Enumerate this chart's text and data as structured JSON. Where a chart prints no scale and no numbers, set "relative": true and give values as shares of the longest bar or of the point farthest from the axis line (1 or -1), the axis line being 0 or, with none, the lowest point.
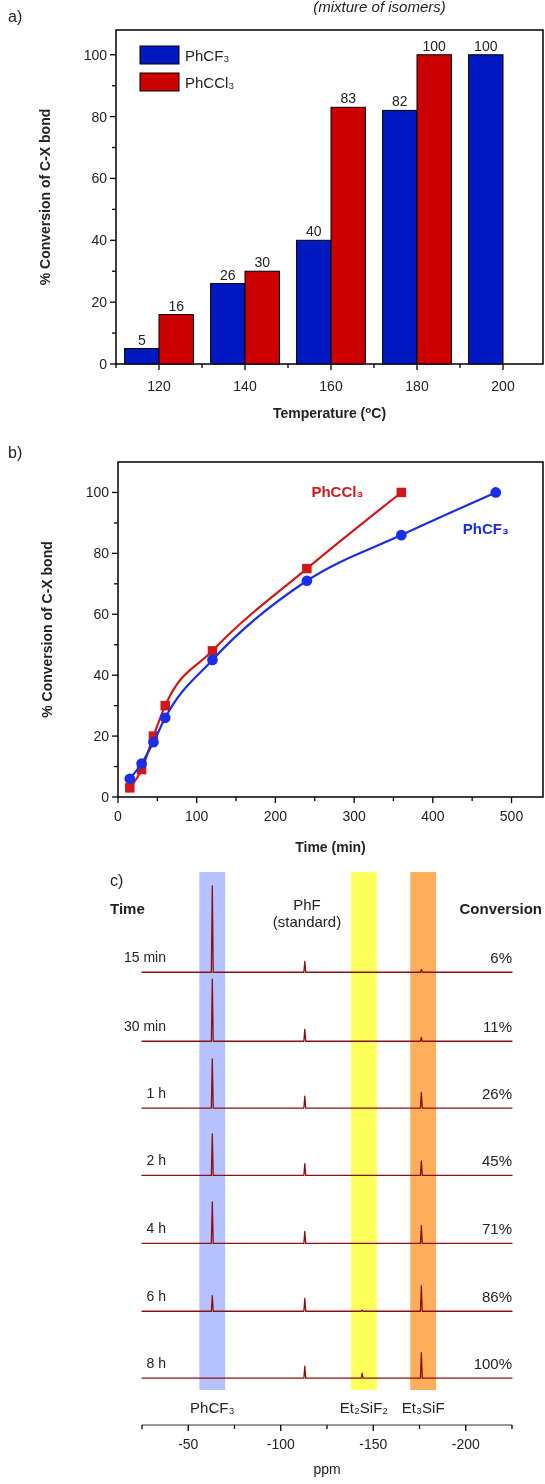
{
  "chart_data": [
    {
      "type": "bar",
      "title": "a)",
      "annotations": [
        "(mixture of isomers)"
      ],
      "xlabel": "Temperature ($^{o}$C)",
      "ylabel": "% Conversion of C-X bond",
      "categories": [
        "120",
        "140",
        "160",
        "180",
        "200"
      ],
      "series": [
        {
          "name": "PhCF₃",
          "color": "#0019c2",
          "values": [
            5,
            26,
            40,
            82,
            100
          ]
        },
        {
          "name": "PhCCl₃",
          "color": "#cc0000",
          "values": [
            16,
            30,
            83,
            100,
            null
          ]
        }
      ],
      "ylim": [
        0,
        108
      ],
      "yticks": [
        0,
        {
          "value": 10,
          "label": null
        },
        20,
        {
          "value": 30,
          "label": null
        },
        40,
        {
          "value": 50,
          "label": null
        },
        60,
        {
          "value": 70,
          "label": null
        },
        80,
        {
          "value": 90,
          "label": null
        },
        100
      ],
      "data_labels": true,
      "legend": "top left"
    },
    {
      "type": "line",
      "title": "b)",
      "xlabel": "Time (min)",
      "ylabel": "% Conversion of C-X bond",
      "series": [
        {
          "name": "PhCCl₃",
          "color": "#d01818",
          "marker": "square",
          "x": [
            15,
            30,
            45,
            60,
            120,
            240,
            360
          ],
          "values": [
            3,
            9,
            20,
            30,
            48,
            75,
            100
          ]
        },
        {
          "name": "PhCF₃",
          "color": "#1a2ee6",
          "marker": "circle",
          "x": [
            15,
            30,
            45,
            60,
            120,
            240,
            360,
            480
          ],
          "values": [
            6,
            11,
            18,
            26,
            45,
            71,
            86,
            100
          ]
        }
      ],
      "xlim": [
        0,
        540
      ],
      "xticks": [
        0,
        {
          "value": 50,
          "label": null
        },
        100,
        {
          "value": 150,
          "label": null
        },
        200,
        {
          "value": 250,
          "label": null
        },
        300,
        {
          "value": 350,
          "label": null
        },
        400,
        {
          "value": 450,
          "label": null
        },
        500
      ],
      "ylim": [
        0,
        110
      ],
      "yticks": [
        0,
        {
          "value": 10,
          "label": null
        },
        20,
        {
          "value": 30,
          "label": null
        },
        40,
        {
          "value": 50,
          "label": null
        },
        60,
        {
          "value": 70,
          "label": null
        },
        80,
        {
          "value": 90,
          "label": null
        },
        100
      ]
    },
    {
      "type": "line",
      "title": "c)",
      "relative": true,
      "marker": "none",
      "xlabel": "ppm",
      "tick_labels": "x",
      "x": [
        -25,
        -62.5,
        -63,
        -63.5,
        -112.5,
        -113,
        -113.5,
        -143.5,
        -144,
        -144.5,
        -175.5,
        -176,
        -176.5,
        -225
      ],
      "series": [
        {
          "name": "15 min",
          "color": "#8b1010",
          "values": [
            0.84,
            0.84,
            1.0,
            0.84,
            0.84,
            0.86,
            0.84,
            0.84,
            0.84,
            0.84,
            0.84,
            0.845,
            0.84,
            0.84
          ]
        },
        {
          "name": "30 min",
          "color": "#8b1010",
          "values": [
            0.712,
            0.712,
            0.827,
            0.712,
            0.712,
            0.734,
            0.712,
            0.712,
            0.712,
            0.712,
            0.712,
            0.719,
            0.712,
            0.712
          ]
        },
        {
          "name": "1 h",
          "color": "#8b1010",
          "values": [
            0.588,
            0.588,
            0.679,
            0.588,
            0.588,
            0.61,
            0.588,
            0.588,
            0.588,
            0.588,
            0.588,
            0.617,
            0.588,
            0.588
          ]
        },
        {
          "name": "2 h",
          "color": "#8b1010",
          "values": [
            0.463,
            0.463,
            0.54,
            0.463,
            0.463,
            0.485,
            0.463,
            0.463,
            0.463,
            0.463,
            0.463,
            0.49,
            0.463,
            0.463
          ]
        },
        {
          "name": "4 h",
          "color": "#8b1010",
          "values": [
            0.337,
            0.337,
            0.414,
            0.337,
            0.337,
            0.359,
            0.337,
            0.337,
            0.337,
            0.337,
            0.337,
            0.37,
            0.337,
            0.337
          ]
        },
        {
          "name": "6 h",
          "color": "#8b1010",
          "values": [
            0.211,
            0.211,
            0.24,
            0.211,
            0.211,
            0.235,
            0.211,
            0.211,
            0.213,
            0.211,
            0.211,
            0.258,
            0.211,
            0.211
          ]
        },
        {
          "name": "8 h",
          "color": "#8b1010",
          "values": [
            0.087,
            0.087,
            0.087,
            0.087,
            0.087,
            0.109,
            0.087,
            0.087,
            0.096,
            0.087,
            0.087,
            0.134,
            0.087,
            0.087
          ]
        }
      ],
      "xlim": [
        -25,
        -225
      ],
      "xticks": [
        {
          "value": -25,
          "label": null
        },
        -50,
        {
          "value": -75,
          "label": null
        },
        -100,
        {
          "value": -125,
          "label": null
        },
        -150,
        {
          "value": -175,
          "label": null
        },
        -200,
        {
          "value": -225,
          "label": null
        }
      ],
      "bands": [
        {
          "axis": "x",
          "from": -56,
          "to": -70,
          "label": "PhCF₃",
          "color": "#a9b6ff"
        },
        {
          "axis": "x",
          "from": -138,
          "to": -152,
          "label": "Et₂SiF₂",
          "color": "#ffff40"
        },
        {
          "axis": "x",
          "from": -170,
          "to": -184,
          "label": "Et₃SiF",
          "color": "#ffa040"
        }
      ],
      "annotations": [
        "Time",
        "Conversion",
        "PhF\n(standard)",
        "6%",
        "11%",
        "26%",
        "45%",
        "71%",
        "86%",
        "100%"
      ]
    }
  ]
}
